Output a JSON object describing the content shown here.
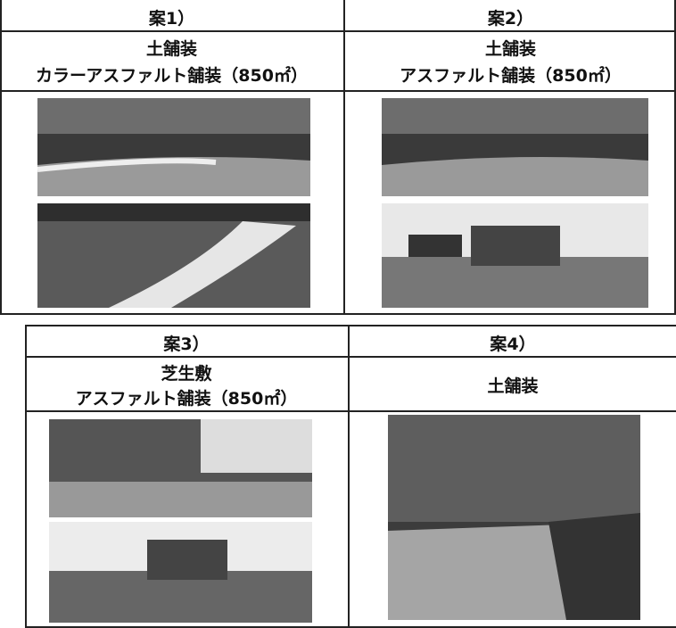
{
  "options": [
    {
      "label": "案1）",
      "lines": [
        "土舗装",
        "カラーアスファルト舗装（850㎡）"
      ]
    },
    {
      "label": "案2）",
      "lines": [
        "土舗装",
        "アスファルト舗装（850㎡）"
      ]
    },
    {
      "label": "案3）",
      "lines": [
        "芝生敷",
        "アスファルト舗装（850㎡）"
      ]
    },
    {
      "label": "案4）",
      "lines": [
        "土舗装"
      ]
    }
  ]
}
